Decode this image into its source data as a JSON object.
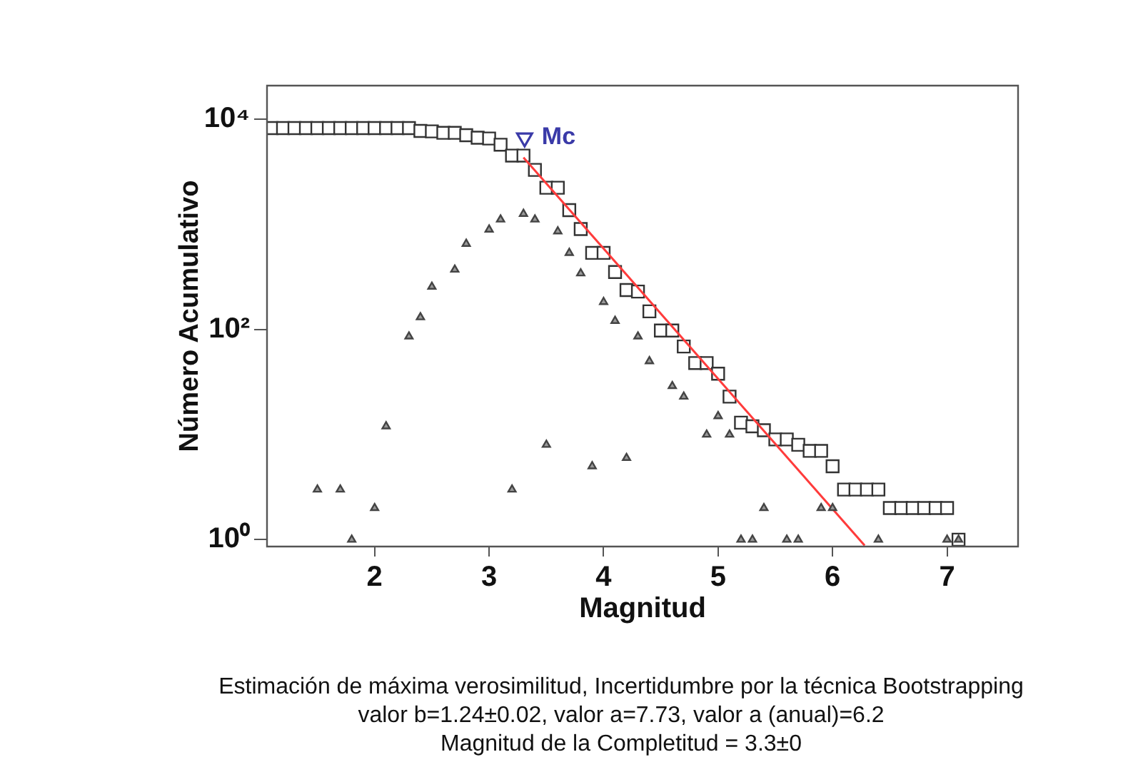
{
  "chart_data": {
    "type": "scatter",
    "xlabel": "Magnitud",
    "ylabel": "Número Acumulativo",
    "xlim": [
      1.06,
      7.62
    ],
    "xticks": [
      2,
      3,
      4,
      5,
      6,
      7
    ],
    "ylim": [
      0.86,
      21000
    ],
    "yticks": [
      {
        "value": 1,
        "label": "10⁰"
      },
      {
        "value": 100,
        "label": "10²"
      },
      {
        "value": 10000,
        "label": "10⁴"
      }
    ],
    "log": "y",
    "legend": false,
    "series": [
      {
        "marker": "square",
        "color": "#333333",
        "x": [
          1.1,
          1.2,
          1.3,
          1.4,
          1.5,
          1.6,
          1.7,
          1.8,
          1.9,
          2.0,
          2.1,
          2.2,
          2.3,
          2.4,
          2.5,
          2.6,
          2.7,
          2.8,
          2.9,
          3.0,
          3.1,
          3.2,
          3.3,
          3.4,
          3.5,
          3.6,
          3.7,
          3.8,
          3.9,
          4.0,
          4.1,
          4.2,
          4.3,
          4.4,
          4.5,
          4.6,
          4.7,
          4.8,
          4.9,
          5.0,
          5.1,
          5.2,
          5.3,
          5.4,
          5.5,
          5.6,
          5.7,
          5.8,
          5.9,
          6.0,
          6.1,
          6.2,
          6.3,
          6.4,
          6.5,
          6.6,
          6.7,
          6.8,
          6.9,
          7.0,
          7.1
        ],
        "values": [
          8280,
          8280,
          8280,
          8280,
          8280,
          8280,
          8280,
          8280,
          8280,
          8280,
          8280,
          8280,
          8280,
          7780,
          7700,
          7460,
          7460,
          7080,
          6710,
          6590,
          5750,
          4530,
          4530,
          3310,
          2240,
          2240,
          1370,
          905,
          537,
          537,
          353,
          238,
          230,
          149,
          98,
          98,
          69,
          48,
          48,
          38,
          23,
          13,
          12,
          11,
          9,
          9,
          8,
          7,
          7,
          5,
          3,
          3,
          3,
          3,
          2,
          2,
          2,
          2,
          2,
          2,
          1
        ]
      },
      {
        "marker": "triangle",
        "color": "#444444",
        "x": [
          1.5,
          1.7,
          1.8,
          2.0,
          2.1,
          2.3,
          2.4,
          2.5,
          2.7,
          2.8,
          3.0,
          3.1,
          3.2,
          3.3,
          3.4,
          3.5,
          3.6,
          3.7,
          3.8,
          3.9,
          4.0,
          4.1,
          4.2,
          4.3,
          4.4,
          4.6,
          4.7,
          4.9,
          5.0,
          5.1,
          5.2,
          5.3,
          5.4,
          5.6,
          5.7,
          5.9,
          6.0,
          6.4,
          7.0,
          7.1
        ],
        "values": [
          3,
          3,
          1,
          2,
          12,
          86,
          131,
          256,
          372,
          655,
          896,
          1117,
          3,
          1264,
          1117,
          8,
          861,
          537,
          343,
          5,
          183,
          121,
          6,
          86,
          50,
          29,
          23,
          10,
          15,
          10,
          1,
          1,
          2,
          1,
          1,
          2,
          2,
          1,
          1,
          1
        ]
      },
      {
        "type": "line",
        "marker": "none",
        "color": "#ff3b3b",
        "x": [
          3.3,
          6.28
        ],
        "values": [
          4350,
          0.88
        ]
      },
      {
        "marker": "triangle",
        "name": "Mc",
        "color": "#3a3aa8",
        "x": [
          3.31
        ],
        "values": [
          6700
        ]
      }
    ],
    "annotations": [
      "Estimación de máxima verosimilitud, Incertidumbre por la técnica Bootstrapping",
      "valor b=1.24±0.02, valor a=7.73, valor a (anual)=6.2",
      "Magnitud de la Completitud = 3.3±0"
    ]
  }
}
